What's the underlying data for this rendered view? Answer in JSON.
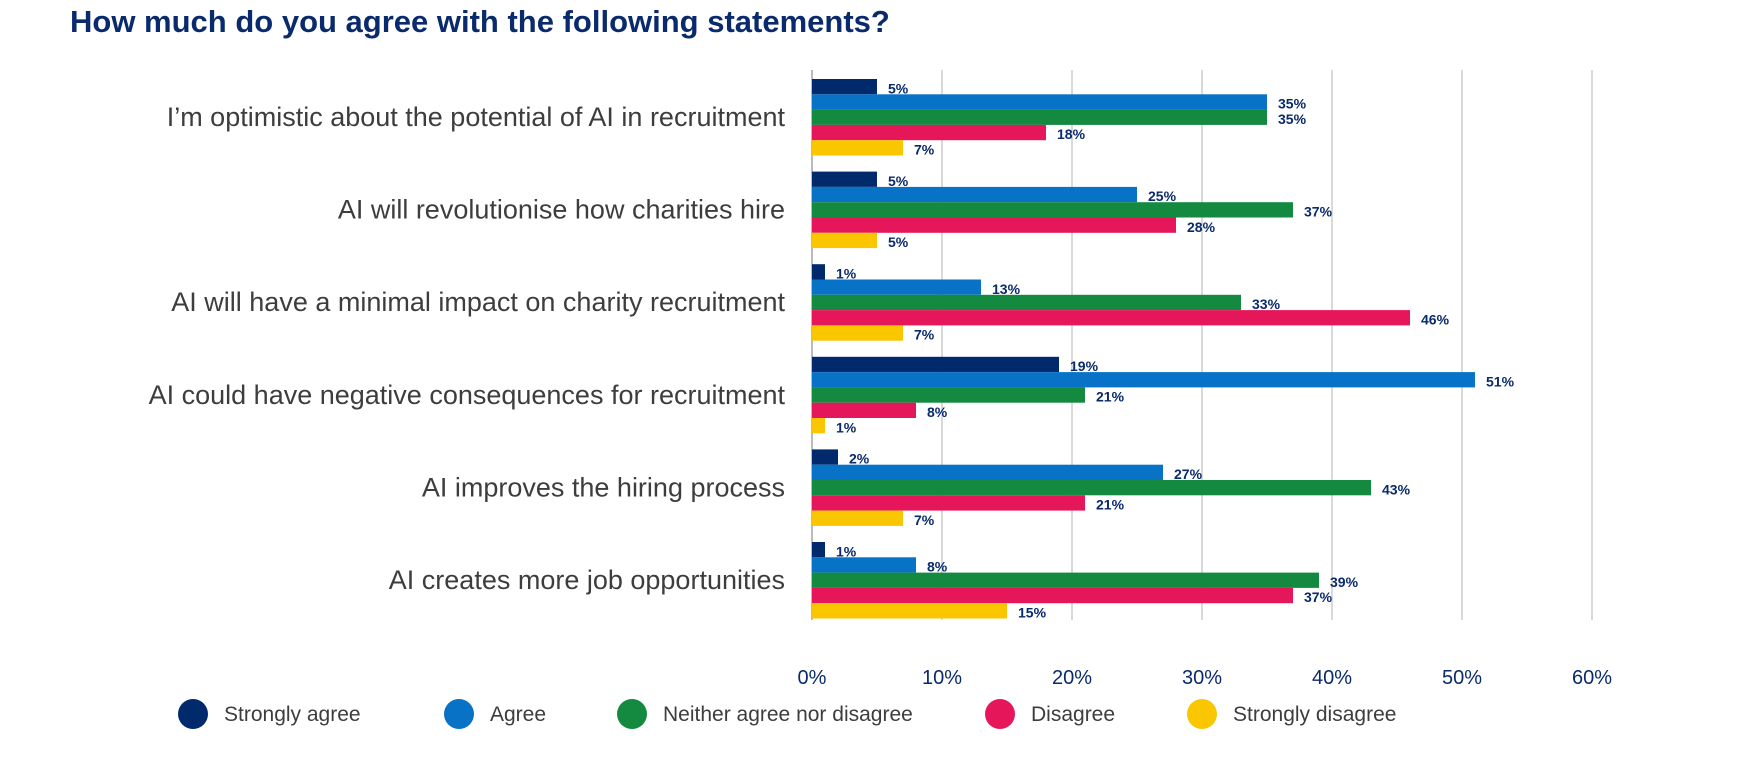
{
  "chart_data": {
    "type": "bar",
    "orientation": "horizontal",
    "title": "How much do you agree with the following statements?",
    "categories": [
      "I’m optimistic about the potential of AI in recruitment",
      "AI will revolutionise how charities hire",
      "AI will have a minimal impact on charity recruitment",
      "AI could have negative consequences for recruitment",
      "AI improves the hiring process",
      "AI creates more job opportunities"
    ],
    "series": [
      {
        "name": "Strongly agree",
        "color": "#002a6c",
        "values": [
          5,
          5,
          1,
          19,
          2,
          1
        ]
      },
      {
        "name": "Agree",
        "color": "#0872c6",
        "values": [
          35,
          25,
          13,
          51,
          27,
          8
        ]
      },
      {
        "name": "Neither agree nor disagree",
        "color": "#138a40",
        "values": [
          35,
          37,
          33,
          21,
          43,
          39
        ]
      },
      {
        "name": "Disagree",
        "color": "#e5175a",
        "values": [
          18,
          28,
          46,
          8,
          21,
          37
        ]
      },
      {
        "name": "Strongly disagree",
        "color": "#f9c600",
        "values": [
          7,
          5,
          7,
          1,
          7,
          15
        ]
      }
    ],
    "value_suffix": "%",
    "xlim": [
      0,
      60
    ],
    "xticks": [
      "0%",
      "10%",
      "20%",
      "30%",
      "40%",
      "50%",
      "60%"
    ],
    "grid": true,
    "legend_position": "bottom",
    "xlabel": "",
    "ylabel": ""
  }
}
